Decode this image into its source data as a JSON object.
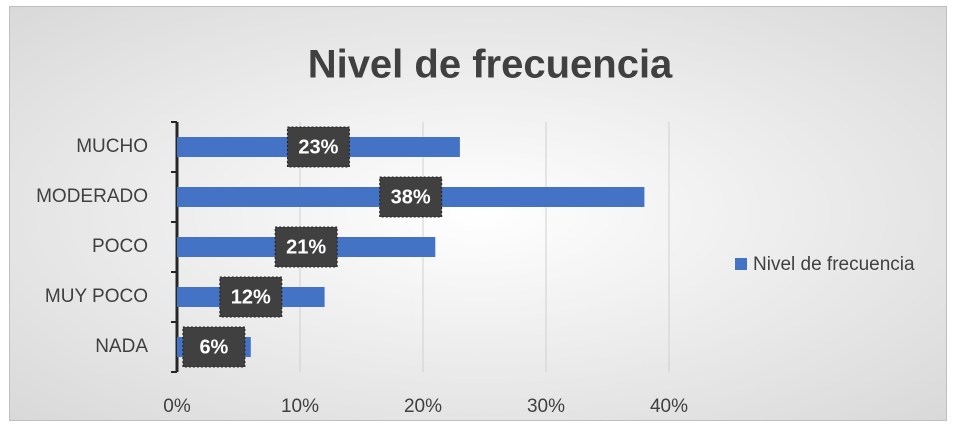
{
  "chart_data": {
    "type": "bar",
    "orientation": "horizontal",
    "title": "Nivel de frecuencia",
    "categories": [
      "MUCHO",
      "MODERADO",
      "POCO",
      "MUY POCO",
      "NADA"
    ],
    "series": [
      {
        "name": "Nivel de frecuencia",
        "color": "#4472c4",
        "values": [
          23,
          38,
          21,
          12,
          6
        ],
        "value_labels": [
          "23%",
          "38%",
          "21%",
          "12%",
          "6%"
        ]
      }
    ],
    "xlim": [
      0,
      40
    ],
    "xticks": [
      {
        "value": 0,
        "label": "0%"
      },
      {
        "value": 10,
        "label": "10%"
      },
      {
        "value": 20,
        "label": "20%"
      },
      {
        "value": 30,
        "label": "30%"
      },
      {
        "value": 40,
        "label": "40%"
      }
    ],
    "grid": true,
    "legend": "right"
  }
}
